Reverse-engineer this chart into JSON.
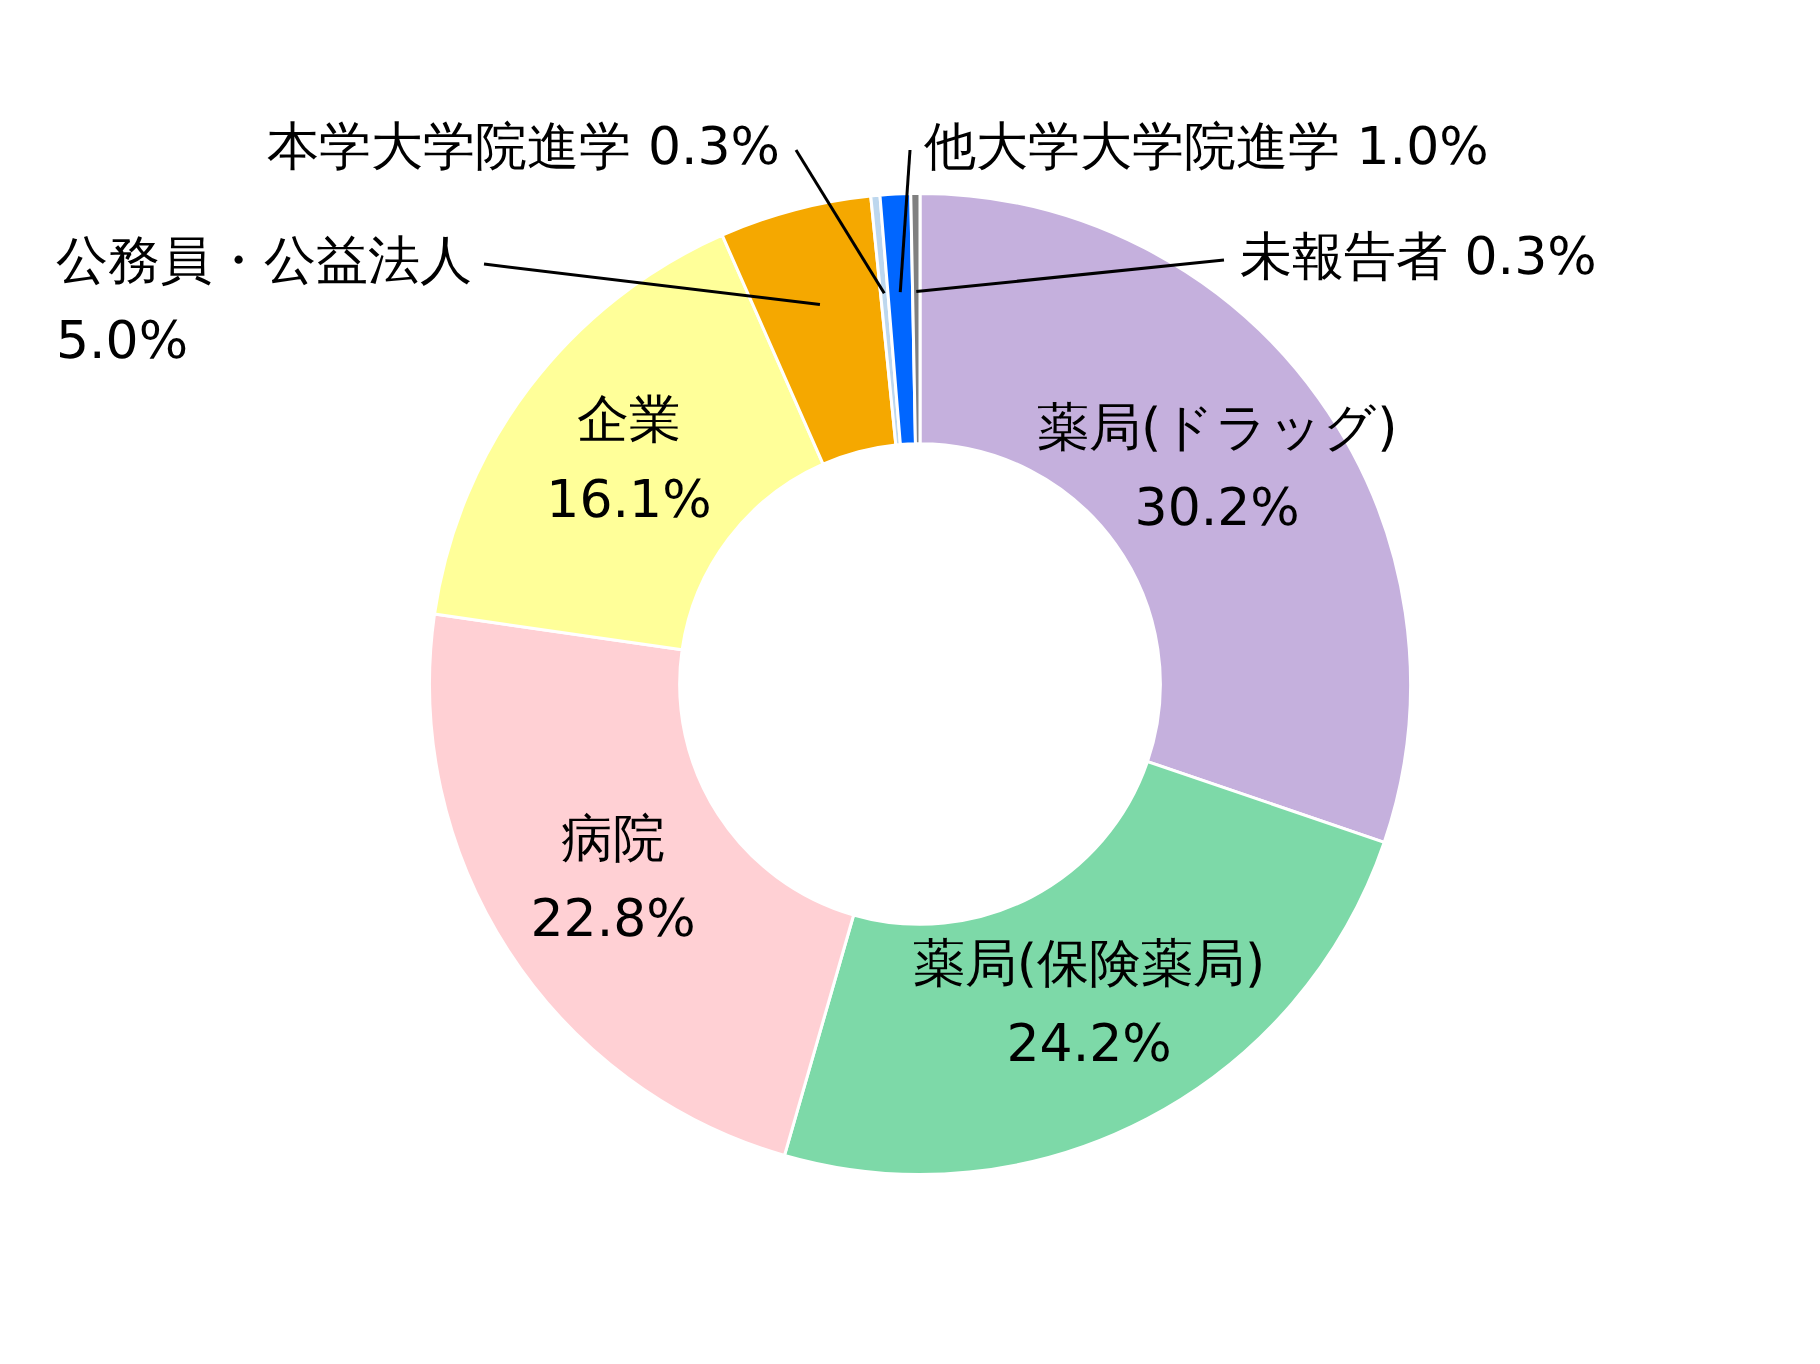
{
  "chart_data": {
    "type": "donut",
    "categories": [
      "薬局(ドラッグ)",
      "薬局(保険薬局)",
      "病院",
      "企業",
      "公務員・公益法人",
      "本学大学院進学",
      "他大学大学院進学",
      "未報告者"
    ],
    "values": [
      30.2,
      24.2,
      22.8,
      16.1,
      5.0,
      0.3,
      1.0,
      0.3
    ],
    "colors": [
      "#c5b0dd",
      "#7dd9a8",
      "#ffd0d4",
      "#ffff99",
      "#f5a800",
      "#bdd7ee",
      "#0066ff",
      "#808080"
    ],
    "value_labels": [
      "30.2%",
      "24.2%",
      "22.8%",
      "16.1%",
      "5.0%",
      "0.3%",
      "1.0%",
      "0.3%"
    ],
    "legend": false
  }
}
